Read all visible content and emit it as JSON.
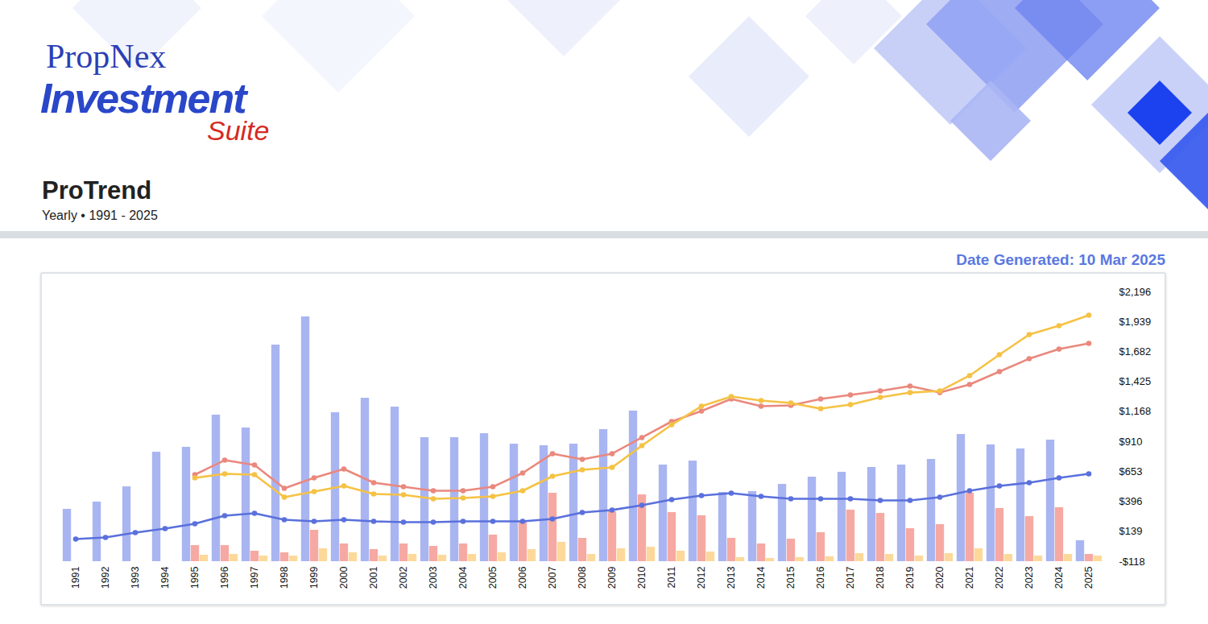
{
  "header": {
    "brand": "PropNex",
    "product": "Investment",
    "suite": "Suite",
    "date": "Date Generated: 10 Mar 2025"
  },
  "chart_data": {
    "type": "bar",
    "title": "ProTrend",
    "subtitle": "Yearly • 1991 - 2025",
    "categories": [
      "1991",
      "1992",
      "1993",
      "1994",
      "1995",
      "1996",
      "1997",
      "1998",
      "1999",
      "2000",
      "2001",
      "2002",
      "2003",
      "2004",
      "2005",
      "2006",
      "2007",
      "2008",
      "2009",
      "2010",
      "2011",
      "2012",
      "2013",
      "2014",
      "2015",
      "2016",
      "2017",
      "2018",
      "2019",
      "2020",
      "2021",
      "2022",
      "2023",
      "2024",
      "2025"
    ],
    "series": [
      {
        "type": "bar",
        "color": "#a9b5f1",
        "values": [
          331,
          393,
          524,
          821,
          863,
          1139,
          1029,
          1740,
          1982,
          1160,
          1284,
          1208,
          946,
          946,
          980,
          890,
          877,
          890,
          1015,
          1174,
          711,
          745,
          476,
          483,
          545,
          607,
          649,
          690,
          711,
          759,
          973,
          884,
          849,
          925,
          62
        ]
      },
      {
        "type": "bar",
        "color": "#f6a9a2",
        "values": [
          null,
          null,
          null,
          null,
          20,
          20,
          -28,
          -42,
          151,
          34,
          -14,
          34,
          13,
          34,
          110,
          220,
          469,
          82,
          310,
          455,
          303,
          276,
          82,
          34,
          75,
          131,
          324,
          296,
          165,
          200,
          469,
          338,
          269,
          345,
          -56
        ]
      },
      {
        "type": "bar",
        "color": "#fcd99a",
        "values": [
          null,
          null,
          null,
          null,
          -63,
          -56,
          -70,
          -70,
          -7,
          -42,
          -70,
          -56,
          -63,
          -56,
          -42,
          -14,
          48,
          -56,
          -7,
          6,
          -28,
          -35,
          -83,
          -90,
          -83,
          -76,
          -49,
          -56,
          -70,
          -49,
          -7,
          -56,
          -70,
          -56,
          -70
        ]
      },
      {
        "type": "line",
        "color": "#5a70dc",
        "marker": "circle",
        "line_style": "solid",
        "values": [
          75,
          89,
          131,
          165,
          207,
          276,
          296,
          241,
          227,
          241,
          227,
          220,
          220,
          227,
          227,
          227,
          248,
          303,
          324,
          365,
          414,
          448,
          469,
          441,
          421,
          421,
          421,
          407,
          407,
          435,
          490,
          531,
          559,
          600,
          635
        ]
      },
      {
        "type": "line",
        "color": "#ea887d",
        "marker": "circle",
        "line_style": "solid",
        "values": [
          null,
          null,
          null,
          null,
          628,
          752,
          711,
          511,
          600,
          676,
          559,
          524,
          490,
          490,
          524,
          642,
          808,
          759,
          808,
          946,
          1084,
          1174,
          1277,
          1215,
          1222,
          1277,
          1312,
          1346,
          1388,
          1332,
          1402,
          1512,
          1623,
          1705,
          1754
        ]
      },
      {
        "type": "line",
        "color": "#f5c244",
        "marker": "circle",
        "line_style": "solid",
        "values": [
          null,
          null,
          null,
          null,
          600,
          635,
          628,
          435,
          483,
          531,
          462,
          455,
          421,
          428,
          441,
          490,
          614,
          669,
          690,
          877,
          1056,
          1215,
          1298,
          1263,
          1243,
          1194,
          1229,
          1291,
          1332,
          1346,
          1478,
          1657,
          1830,
          1906,
          1996
        ]
      }
    ],
    "ylim": [
      -118,
      2196
    ],
    "yticks": [
      {
        "value": -118,
        "label": "-$118"
      },
      {
        "value": 139,
        "label": "$139"
      },
      {
        "value": 396,
        "label": "$396"
      },
      {
        "value": 653,
        "label": "$653"
      },
      {
        "value": 910,
        "label": "$910"
      },
      {
        "value": 1168,
        "label": "$1,168"
      },
      {
        "value": 1425,
        "label": "$1,425"
      },
      {
        "value": 1682,
        "label": "$1,682"
      },
      {
        "value": 1939,
        "label": "$1,939"
      },
      {
        "value": 2196,
        "label": "$2,196"
      }
    ],
    "grid": false
  }
}
